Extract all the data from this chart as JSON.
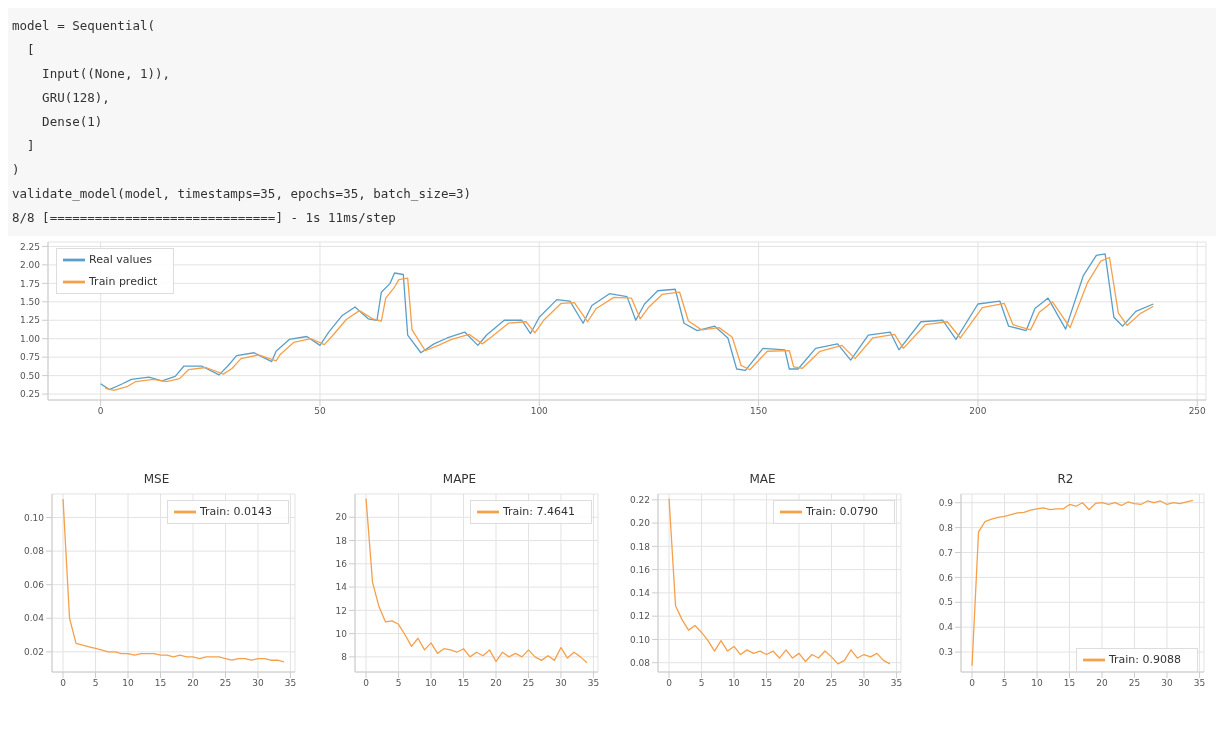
{
  "chart_data": [
    {
      "type": "other",
      "annotations": [
        "model = Sequential(",
        "  [",
        "    Input((None, 1)),",
        "    GRU(128),",
        "    Dense(1)",
        "  ]",
        ")",
        "validate_model(model, timestamps=35, epochs=35, batch_size=3)",
        "8/8 [==============================] - 1s 11ms/step"
      ]
    },
    {
      "type": "line",
      "xlim": [
        -12,
        252
      ],
      "xticks": [
        0,
        50,
        100,
        150,
        200,
        250
      ],
      "ylim": [
        0.17,
        2.31
      ],
      "yticks": [
        0.25,
        {
          "value": 0.5,
          "label": "0.50"
        },
        0.75,
        {
          "value": 1,
          "label": "1.00"
        },
        1.25,
        {
          "value": 1.5,
          "label": "1.50"
        },
        1.75,
        {
          "value": 2,
          "label": "2.00"
        },
        2.25
      ],
      "grid": true,
      "legend": "top left",
      "series": [
        {
          "name": "Real values",
          "color": "#5a9fc8",
          "x": [
            0,
            2,
            5,
            7,
            11,
            14,
            17,
            19,
            23,
            27,
            29,
            31,
            35,
            39,
            40,
            43,
            47,
            50,
            52,
            55,
            58,
            61,
            63,
            64,
            66,
            67,
            69,
            70,
            73,
            76,
            79,
            83,
            86,
            88,
            92,
            96,
            98,
            100,
            104,
            107,
            110,
            112,
            116,
            120,
            122,
            124,
            127,
            131,
            133,
            136,
            140,
            143,
            145,
            147,
            151,
            156,
            157,
            159,
            163,
            168,
            171,
            175,
            180,
            182,
            187,
            192,
            195,
            200,
            205,
            207,
            211,
            213,
            216,
            220,
            224,
            227,
            229,
            231,
            233,
            236,
            240
          ],
          "values": [
            0.39,
            0.31,
            0.39,
            0.45,
            0.48,
            0.43,
            0.49,
            0.63,
            0.63,
            0.51,
            0.63,
            0.77,
            0.81,
            0.69,
            0.83,
            0.99,
            1.03,
            0.91,
            1.09,
            1.31,
            1.43,
            1.27,
            1.25,
            1.63,
            1.75,
            1.89,
            1.87,
            1.05,
            0.81,
            0.93,
            1.01,
            1.09,
            0.91,
            1.05,
            1.25,
            1.25,
            1.07,
            1.29,
            1.53,
            1.51,
            1.21,
            1.45,
            1.61,
            1.57,
            1.25,
            1.47,
            1.65,
            1.67,
            1.21,
            1.11,
            1.17,
            1.01,
            0.59,
            0.57,
            0.87,
            0.85,
            0.59,
            0.59,
            0.87,
            0.93,
            0.71,
            1.05,
            1.09,
            0.85,
            1.23,
            1.25,
            0.99,
            1.47,
            1.51,
            1.17,
            1.11,
            1.41,
            1.55,
            1.13,
            1.85,
            2.13,
            2.15,
            1.29,
            1.17,
            1.37,
            1.47
          ]
        },
        {
          "name": "Train predict",
          "color": "#f5a04a",
          "x": [
            1,
            3,
            6,
            8,
            12,
            15,
            18,
            20,
            24,
            28,
            30,
            32,
            36,
            40,
            41,
            44,
            48,
            51,
            53,
            56,
            59,
            62,
            64,
            65,
            67,
            68,
            70,
            71,
            74,
            77,
            80,
            84,
            87,
            89,
            93,
            97,
            99,
            101,
            105,
            108,
            111,
            113,
            117,
            121,
            123,
            125,
            128,
            132,
            134,
            137,
            141,
            144,
            146,
            148,
            152,
            157,
            158,
            160,
            164,
            169,
            172,
            176,
            181,
            183,
            188,
            193,
            196,
            201,
            206,
            208,
            212,
            214,
            217,
            221,
            225,
            228,
            230,
            232,
            234,
            237,
            240
          ],
          "values": [
            0.33,
            0.3,
            0.35,
            0.42,
            0.45,
            0.42,
            0.46,
            0.58,
            0.61,
            0.52,
            0.6,
            0.73,
            0.78,
            0.7,
            0.79,
            0.95,
            1.0,
            0.92,
            1.05,
            1.26,
            1.38,
            1.27,
            1.24,
            1.55,
            1.7,
            1.8,
            1.82,
            1.12,
            0.84,
            0.91,
            0.99,
            1.06,
            0.93,
            1.02,
            1.21,
            1.23,
            1.08,
            1.25,
            1.48,
            1.49,
            1.23,
            1.41,
            1.56,
            1.55,
            1.27,
            1.43,
            1.6,
            1.63,
            1.24,
            1.12,
            1.15,
            1.02,
            0.64,
            0.58,
            0.83,
            0.84,
            0.62,
            0.6,
            0.83,
            0.91,
            0.73,
            1.01,
            1.06,
            0.87,
            1.19,
            1.23,
            1.01,
            1.42,
            1.48,
            1.19,
            1.12,
            1.36,
            1.5,
            1.15,
            1.76,
            2.05,
            2.1,
            1.35,
            1.18,
            1.34,
            1.44
          ]
        }
      ]
    },
    {
      "type": "line",
      "title": "MSE",
      "x": [
        0,
        1,
        2,
        3,
        4,
        5,
        6,
        7,
        8,
        9,
        10,
        11,
        12,
        13,
        14,
        15,
        16,
        17,
        18,
        19,
        20,
        21,
        22,
        23,
        24,
        25,
        26,
        27,
        28,
        29,
        30,
        31,
        32,
        33,
        34
      ],
      "xlim": [
        -1.7,
        35.7
      ],
      "xticks": [
        0,
        5,
        10,
        15,
        20,
        25,
        30,
        35
      ],
      "ylim": [
        0.008,
        0.114
      ],
      "yticks": [
        0.02,
        0.04,
        0.06,
        0.08,
        {
          "value": 0.1,
          "label": "0.10"
        }
      ],
      "grid": true,
      "legend": "top right",
      "series": [
        {
          "name": "Train: 0.0143",
          "color": "#f5a04a",
          "values": [
            0.111,
            0.04,
            0.025,
            0.024,
            0.023,
            0.022,
            0.021,
            0.02,
            0.02,
            0.019,
            0.019,
            0.018,
            0.019,
            0.019,
            0.019,
            0.018,
            0.018,
            0.017,
            0.018,
            0.017,
            0.017,
            0.016,
            0.017,
            0.017,
            0.017,
            0.016,
            0.015,
            0.016,
            0.016,
            0.015,
            0.016,
            0.016,
            0.015,
            0.015,
            0.014
          ]
        }
      ]
    },
    {
      "type": "line",
      "title": "MAPE",
      "x": [
        0,
        1,
        2,
        3,
        4,
        5,
        6,
        7,
        8,
        9,
        10,
        11,
        12,
        13,
        14,
        15,
        16,
        17,
        18,
        19,
        20,
        21,
        22,
        23,
        24,
        25,
        26,
        27,
        28,
        29,
        30,
        31,
        32,
        33,
        34
      ],
      "xlim": [
        -1.7,
        35.7
      ],
      "xticks": [
        0,
        5,
        10,
        15,
        20,
        25,
        30,
        35
      ],
      "ylim": [
        6.7,
        22
      ],
      "yticks": [
        8,
        10,
        12,
        14,
        16,
        18,
        20
      ],
      "grid": true,
      "legend": "top right",
      "series": [
        {
          "name": "Train: 7.4641",
          "color": "#f5a04a",
          "values": [
            21.6,
            14.4,
            12.3,
            11.0,
            11.1,
            10.8,
            9.9,
            8.9,
            9.6,
            8.6,
            9.2,
            8.3,
            8.7,
            8.6,
            8.4,
            8.7,
            8.0,
            8.4,
            8.1,
            8.6,
            7.6,
            8.4,
            8.0,
            8.3,
            8.0,
            8.6,
            8.0,
            7.7,
            8.1,
            7.7,
            8.8,
            7.9,
            8.4,
            8.0,
            7.5
          ]
        }
      ]
    },
    {
      "type": "line",
      "title": "MAE",
      "x": [
        0,
        1,
        2,
        3,
        4,
        5,
        6,
        7,
        8,
        9,
        10,
        11,
        12,
        13,
        14,
        15,
        16,
        17,
        18,
        19,
        20,
        21,
        22,
        23,
        24,
        25,
        26,
        27,
        28,
        29,
        30,
        31,
        32,
        33,
        34
      ],
      "xlim": [
        -1.7,
        35.7
      ],
      "xticks": [
        0,
        5,
        10,
        15,
        20,
        25,
        30,
        35
      ],
      "ylim": [
        0.072,
        0.225
      ],
      "yticks": [
        0.08,
        {
          "value": 0.1,
          "label": "0.10"
        },
        0.12,
        0.14,
        0.16,
        0.18,
        {
          "value": 0.2,
          "label": "0.20"
        },
        0.22
      ],
      "grid": true,
      "legend": "top right",
      "series": [
        {
          "name": "Train: 0.0790",
          "color": "#f5a04a",
          "values": [
            0.221,
            0.129,
            0.117,
            0.108,
            0.112,
            0.106,
            0.099,
            0.09,
            0.099,
            0.09,
            0.094,
            0.087,
            0.091,
            0.088,
            0.09,
            0.087,
            0.09,
            0.084,
            0.091,
            0.084,
            0.088,
            0.081,
            0.087,
            0.084,
            0.09,
            0.085,
            0.079,
            0.082,
            0.091,
            0.084,
            0.087,
            0.085,
            0.088,
            0.082,
            0.079
          ]
        }
      ]
    },
    {
      "type": "line",
      "title": "R2",
      "x": [
        0,
        1,
        2,
        3,
        4,
        5,
        6,
        7,
        8,
        9,
        10,
        11,
        12,
        13,
        14,
        15,
        16,
        17,
        18,
        19,
        20,
        21,
        22,
        23,
        24,
        25,
        26,
        27,
        28,
        29,
        30,
        31,
        32,
        33,
        34
      ],
      "xlim": [
        -1.7,
        35.7
      ],
      "xticks": [
        0,
        5,
        10,
        15,
        20,
        25,
        30,
        35
      ],
      "ylim": [
        0.22,
        0.935
      ],
      "yticks": [
        0.3,
        0.4,
        0.5,
        0.6,
        0.7,
        0.8,
        0.9
      ],
      "grid": true,
      "legend": "bottom right",
      "series": [
        {
          "name": "Train: 0.9088",
          "color": "#f5a04a",
          "values": [
            0.245,
            0.783,
            0.824,
            0.834,
            0.841,
            0.845,
            0.852,
            0.859,
            0.861,
            0.87,
            0.875,
            0.879,
            0.872,
            0.875,
            0.875,
            0.893,
            0.886,
            0.9,
            0.872,
            0.897,
            0.9,
            0.893,
            0.9,
            0.889,
            0.903,
            0.896,
            0.893,
            0.907,
            0.9,
            0.907,
            0.893,
            0.9,
            0.896,
            0.903,
            0.909
          ]
        }
      ]
    }
  ]
}
